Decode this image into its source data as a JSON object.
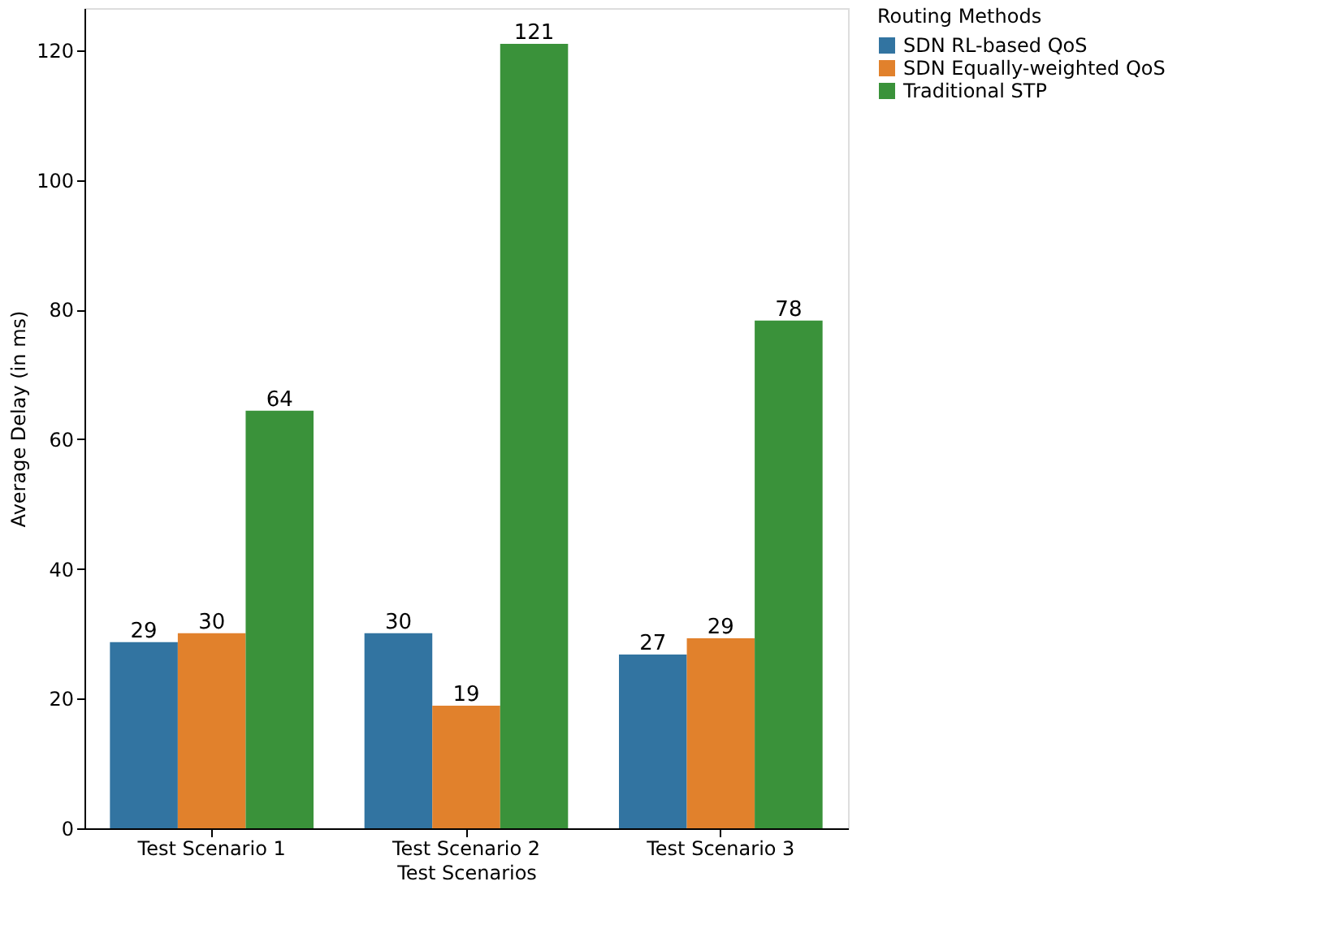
{
  "chart_data": {
    "type": "bar",
    "xlabel": "Test Scenarios",
    "ylabel": "Average Delay (in ms)",
    "legend_title": "Routing Methods",
    "categories": [
      "Test Scenario 1",
      "Test Scenario 2",
      "Test Scenario 3"
    ],
    "series": [
      {
        "name": "SDN RL-based QoS",
        "color": "#3274a1",
        "values": [
          28.7,
          30.1,
          26.8
        ],
        "value_labels": [
          "29",
          "30",
          "27"
        ]
      },
      {
        "name": "SDN Equally-weighted QoS",
        "color": "#e1812c",
        "values": [
          30.1,
          18.9,
          29.3
        ],
        "value_labels": [
          "30",
          "19",
          "29"
        ]
      },
      {
        "name": "Traditional STP",
        "color": "#3a923a",
        "values": [
          64.4,
          121,
          78.3
        ],
        "value_labels": [
          "64",
          "121",
          "78"
        ]
      }
    ],
    "ylim": [
      0,
      126.5
    ],
    "yticks": [
      0,
      20,
      40,
      60,
      80,
      100,
      120
    ],
    "grid": false,
    "legend": "right"
  }
}
